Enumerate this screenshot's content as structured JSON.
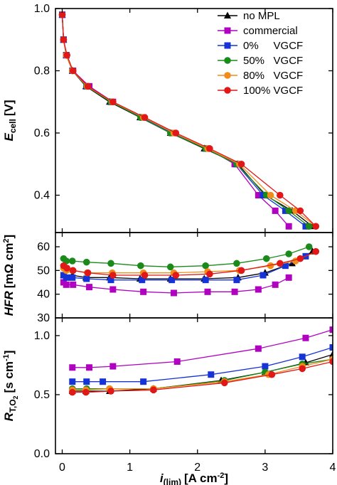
{
  "chart_data": {
    "type": "line",
    "xlabel": {
      "main": "i",
      "sub": "(lim)",
      "unit": "[A cm",
      "sup": "-2",
      "close": "]"
    },
    "xlim": [
      -0.1,
      4.0
    ],
    "xticks": [
      "0",
      "1",
      "2",
      "3",
      "4"
    ],
    "legend": {
      "placement": "top-right"
    },
    "series": [
      {
        "name": "no MPL",
        "color": "#000000",
        "marker": "triangle"
      },
      {
        "name": "commercial",
        "color": "#b000c0",
        "marker": "square"
      },
      {
        "name": "0%     VGCF",
        "color": "#1533d6",
        "marker": "square"
      },
      {
        "name": "50%   VGCF",
        "color": "#1a8a1a",
        "marker": "circle"
      },
      {
        "name": "80%   VGCF",
        "color": "#f08c1a",
        "marker": "circle"
      },
      {
        "name": "100% VGCF",
        "color": "#e01818",
        "marker": "circle"
      }
    ],
    "panels": [
      {
        "id": "ecell",
        "ylabel": {
          "main": "E",
          "sub": "cell",
          "unit": "[V]"
        },
        "ylim": [
          0.28,
          1.0
        ],
        "yticks": [
          {
            "v": 1.0,
            "t": "1.0"
          },
          {
            "v": 0.8,
            "t": "0.8"
          },
          {
            "v": 0.6,
            "t": "0.6"
          },
          {
            "v": 0.4,
            "t": "0.4"
          }
        ],
        "series": [
          {
            "x": [
              0.0,
              0.02,
              0.06,
              0.15,
              0.35,
              0.7,
              1.15,
              1.6,
              2.1,
              2.6,
              3.0,
              3.4,
              3.7
            ],
            "y": [
              0.98,
              0.9,
              0.85,
              0.8,
              0.75,
              0.7,
              0.65,
              0.6,
              0.55,
              0.5,
              0.4,
              0.35,
              0.3
            ]
          },
          {
            "x": [
              0.0,
              0.02,
              0.06,
              0.16,
              0.4,
              0.75,
              1.2,
              1.65,
              2.15,
              2.55,
              2.9,
              3.15,
              3.35
            ],
            "y": [
              0.98,
              0.9,
              0.85,
              0.8,
              0.75,
              0.7,
              0.65,
              0.6,
              0.55,
              0.5,
              0.4,
              0.35,
              0.3
            ]
          },
          {
            "x": [
              0.0,
              0.02,
              0.06,
              0.15,
              0.36,
              0.72,
              1.18,
              1.62,
              2.12,
              2.58,
              2.97,
              3.3,
              3.6
            ],
            "y": [
              0.98,
              0.9,
              0.85,
              0.8,
              0.75,
              0.7,
              0.65,
              0.6,
              0.55,
              0.5,
              0.4,
              0.35,
              0.3
            ]
          },
          {
            "x": [
              0.0,
              0.02,
              0.06,
              0.15,
              0.36,
              0.72,
              1.16,
              1.6,
              2.12,
              2.58,
              3.02,
              3.35,
              3.65
            ],
            "y": [
              0.98,
              0.9,
              0.85,
              0.8,
              0.75,
              0.7,
              0.65,
              0.6,
              0.55,
              0.5,
              0.4,
              0.35,
              0.3
            ]
          },
          {
            "x": [
              0.0,
              0.02,
              0.06,
              0.15,
              0.37,
              0.74,
              1.2,
              1.65,
              2.15,
              2.62,
              3.08,
              3.45,
              3.75
            ],
            "y": [
              0.98,
              0.9,
              0.85,
              0.8,
              0.75,
              0.7,
              0.65,
              0.6,
              0.55,
              0.5,
              0.4,
              0.35,
              0.3
            ]
          },
          {
            "x": [
              0.0,
              0.02,
              0.07,
              0.16,
              0.38,
              0.75,
              1.22,
              1.68,
              2.18,
              2.65,
              3.22,
              3.52,
              3.75
            ],
            "y": [
              0.98,
              0.9,
              0.85,
              0.8,
              0.75,
              0.7,
              0.65,
              0.6,
              0.55,
              0.5,
              0.4,
              0.35,
              0.3
            ]
          }
        ]
      },
      {
        "id": "hfr",
        "ylabel": {
          "main": "HFR",
          "unit": "[mΩ cm",
          "sup": "2",
          "close": "]"
        },
        "ylim": [
          30,
          66
        ],
        "yticks": [
          {
            "v": 30,
            "t": "30"
          },
          {
            "v": 40,
            "t": "40"
          },
          {
            "v": 50,
            "t": "50"
          },
          {
            "v": 60,
            "t": "60"
          }
        ],
        "series": [
          {
            "x": [
              0.02,
              0.15,
              0.35,
              0.7,
              1.15,
              1.6,
              2.1,
              2.6,
              3.0,
              3.4,
              3.7
            ],
            "y": [
              48,
              48,
              47,
              47,
              46.5,
              46.5,
              46.5,
              47,
              49,
              53,
              58
            ]
          },
          {
            "x": [
              0.02,
              0.06,
              0.16,
              0.4,
              0.75,
              1.2,
              1.65,
              2.15,
              2.55,
              2.9,
              3.15,
              3.35
            ],
            "y": [
              45,
              44,
              44,
              43,
              42,
              41,
              40.5,
              41,
              41,
              42,
              44,
              47
            ]
          },
          {
            "x": [
              0.02,
              0.06,
              0.15,
              0.36,
              0.72,
              1.18,
              1.62,
              2.12,
              2.58,
              2.97,
              3.3,
              3.6
            ],
            "y": [
              48,
              47,
              47,
              46.5,
              46,
              46,
              46,
              46,
              46,
              48,
              52,
              56
            ]
          },
          {
            "x": [
              0.02,
              0.06,
              0.15,
              0.36,
              0.72,
              1.16,
              1.6,
              2.12,
              2.58,
              3.02,
              3.35,
              3.65
            ],
            "y": [
              55,
              54,
              54,
              53.5,
              53,
              52,
              51.5,
              52,
              53,
              55,
              57,
              60
            ]
          },
          {
            "x": [
              0.02,
              0.06,
              0.15,
              0.37,
              0.74,
              1.2,
              1.65,
              2.15,
              2.62,
              3.08,
              3.45,
              3.75
            ],
            "y": [
              51,
              50,
              50,
              49,
              49,
              49,
              49,
              49.5,
              50,
              52,
              54,
              58
            ]
          },
          {
            "x": [
              0.02,
              0.07,
              0.16,
              0.38,
              0.75,
              1.22,
              1.68,
              2.18,
              2.65,
              3.22,
              3.52,
              3.75
            ],
            "y": [
              52,
              51,
              50,
              49,
              48,
              48,
              48,
              48.5,
              50,
              53,
              55,
              58
            ]
          }
        ]
      },
      {
        "id": "rt",
        "ylabel": {
          "main": "R",
          "sub": "T,O",
          "subsub": "2",
          "unit": "[s cm",
          "sup": "-1",
          "close": "]"
        },
        "ylim": [
          0.0,
          1.15
        ],
        "yticks": [
          {
            "v": 0.0,
            "t": "0.0"
          },
          {
            "v": 0.5,
            "t": "0.5"
          },
          {
            "v": 1.0,
            "t": "1.0"
          }
        ],
        "series": [
          {
            "x": [
              0.15,
              0.35,
              0.7,
              1.35,
              2.35,
              3.0,
              3.6,
              4.0
            ],
            "y": [
              0.53,
              0.53,
              0.53,
              0.55,
              0.62,
              0.69,
              0.77,
              0.84
            ]
          },
          {
            "x": [
              0.15,
              0.4,
              0.75,
              1.7,
              2.9,
              3.6,
              4.0
            ],
            "y": [
              0.73,
              0.73,
              0.74,
              0.78,
              0.89,
              0.98,
              1.05
            ]
          },
          {
            "x": [
              0.15,
              0.36,
              0.6,
              1.2,
              2.2,
              3.0,
              3.55,
              4.0
            ],
            "y": [
              0.61,
              0.61,
              0.61,
              0.61,
              0.67,
              0.74,
              0.82,
              0.9
            ]
          },
          {
            "x": [
              0.15,
              0.36,
              0.7,
              1.35,
              2.4,
              3.0,
              3.55,
              4.0
            ],
            "y": [
              0.55,
              0.55,
              0.55,
              0.55,
              0.62,
              0.69,
              0.76,
              0.8
            ]
          },
          {
            "x": [
              0.15,
              0.35,
              0.7,
              1.35,
              2.4,
              3.05,
              3.55,
              4.0
            ],
            "y": [
              0.54,
              0.54,
              0.55,
              0.55,
              0.61,
              0.67,
              0.74,
              0.8
            ]
          },
          {
            "x": [
              0.15,
              0.35,
              0.72,
              1.35,
              2.4,
              3.1,
              3.55,
              4.0
            ],
            "y": [
              0.52,
              0.52,
              0.53,
              0.54,
              0.6,
              0.67,
              0.72,
              0.78
            ]
          }
        ]
      }
    ]
  }
}
